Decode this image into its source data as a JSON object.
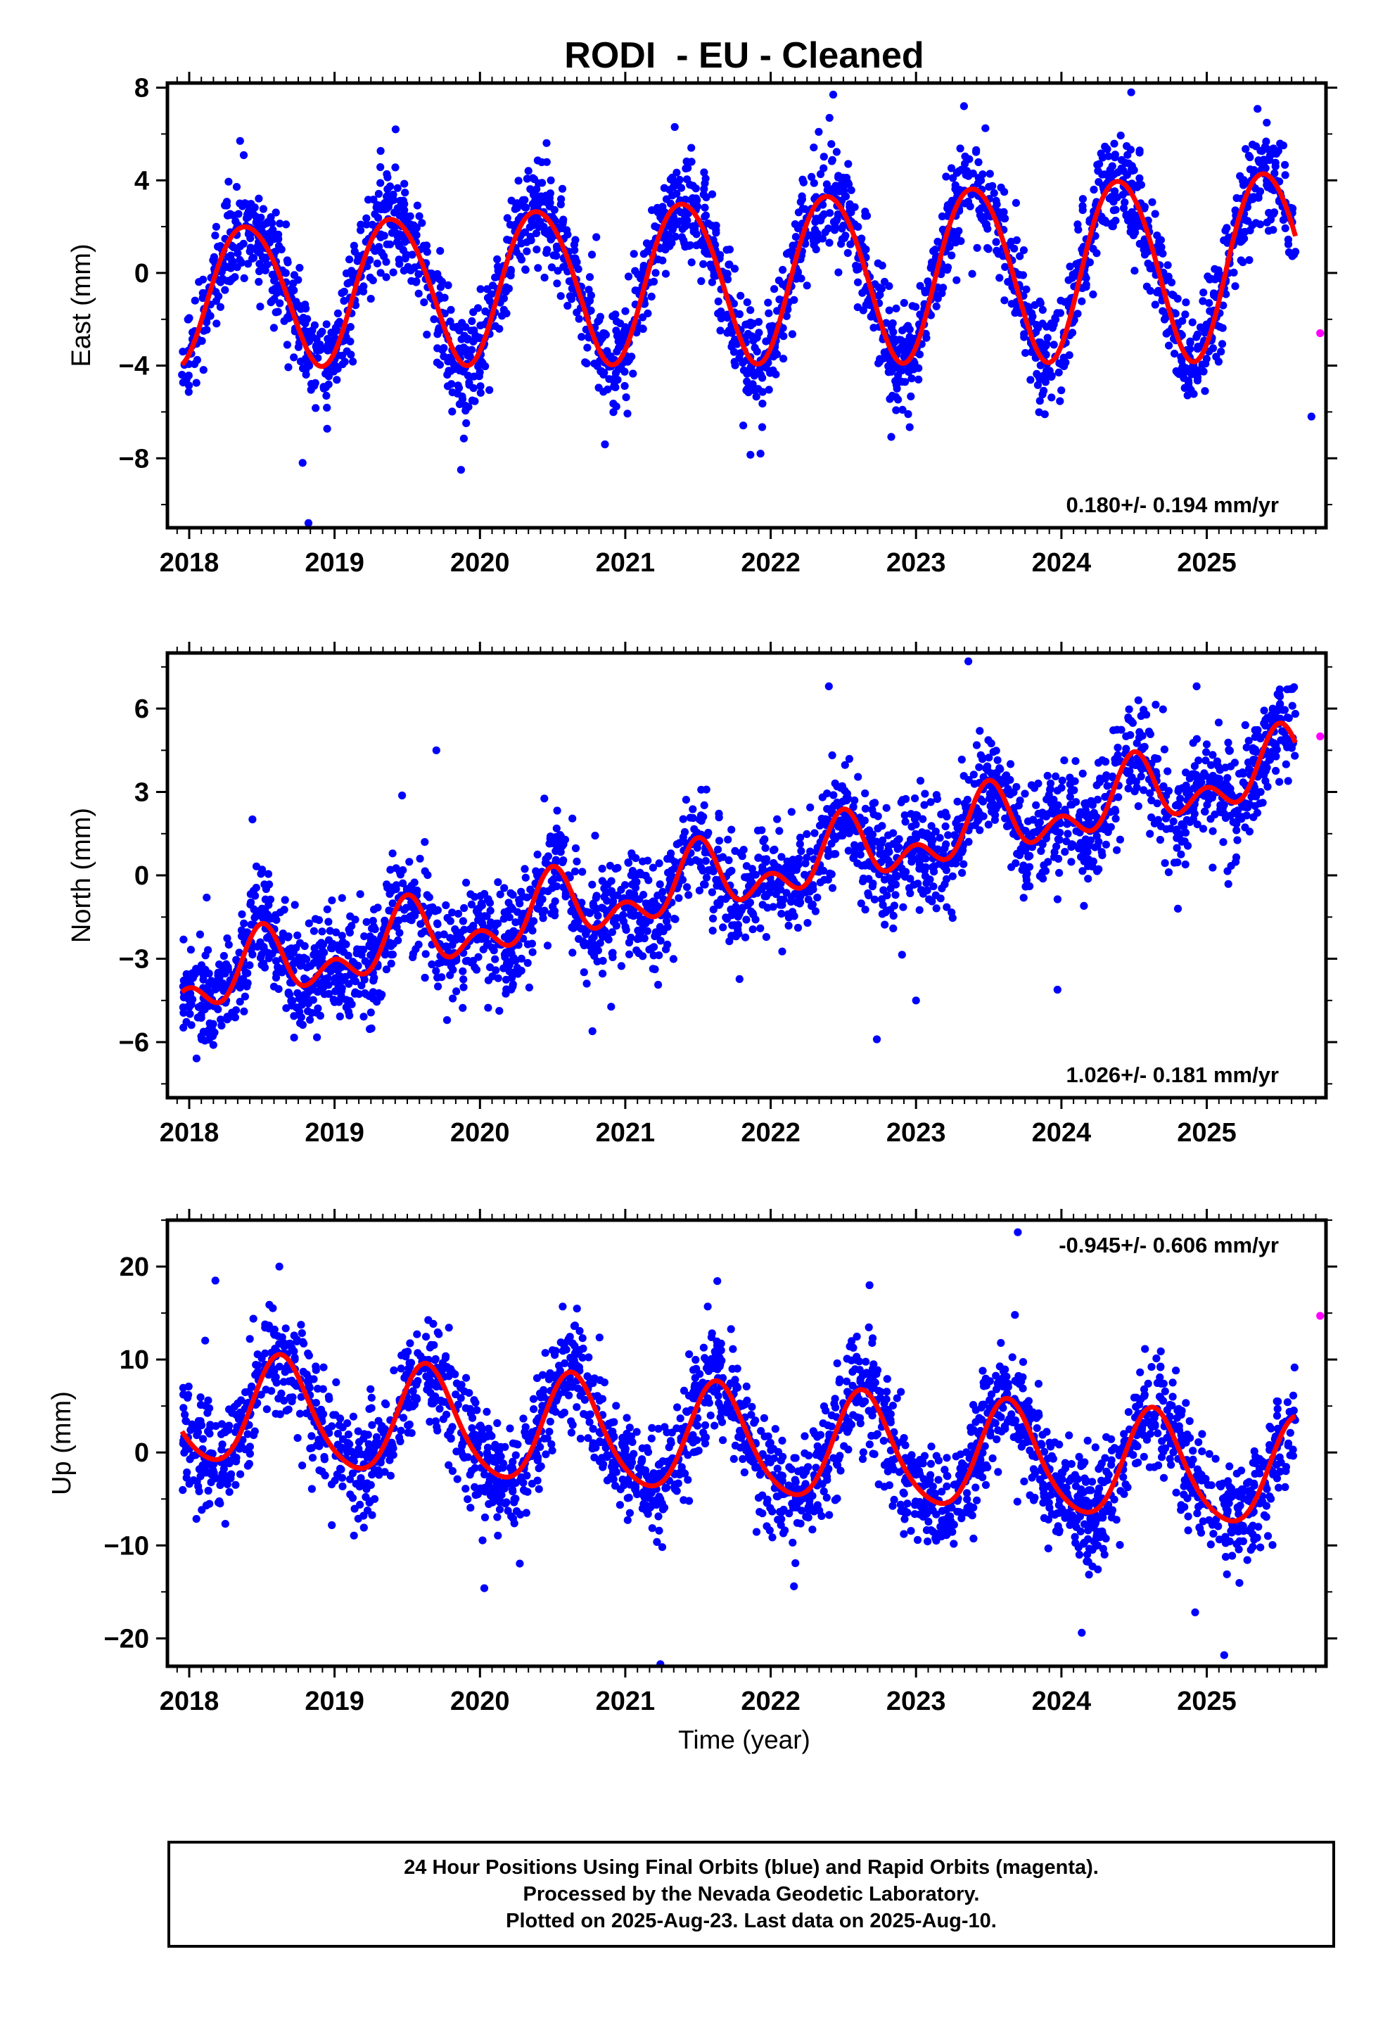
{
  "title": "RODI  - EU - Cleaned",
  "xlabel": "Time (year)",
  "footer": {
    "line1": "24 Hour Positions Using Final Orbits (blue) and Rapid Orbits (magenta).",
    "line2": "Processed by the Nevada Geodetic Laboratory.",
    "line3": "Plotted on 2025-Aug-23. Last data on 2025-Aug-10."
  },
  "colors": {
    "final": "#0000ff",
    "rapid": "#ff00ff",
    "model": "#ff0000",
    "frame": "#000000"
  },
  "chart_data": [
    {
      "type": "scatter",
      "component": "east",
      "ylabel": "East (mm)",
      "rate_label": "0.180+/- 0.194 mm/yr",
      "xlim": [
        2017.85,
        2025.82
      ],
      "ylim": [
        -11.0,
        8.2
      ],
      "xticks": [
        2018,
        2019,
        2020,
        2021,
        2022,
        2023,
        2024,
        2025
      ],
      "yticks": [
        -8,
        -4,
        0,
        4,
        8
      ],
      "ytick_labels": [
        "−8",
        "−4",
        "0",
        "4",
        "8"
      ],
      "model": {
        "offset": -0.9,
        "trend": 0.18,
        "t0": 2018.0,
        "annual_amp": 2.95,
        "annual_peak": 2018.4,
        "semi_amp": 0.25,
        "semi_peak": 2018.2,
        "amp_growth": 0.05
      },
      "scatter": 1.1,
      "final_range": [
        2017.95,
        2025.61
      ],
      "rapid_points": [
        [
          2025.78,
          -2.6
        ]
      ],
      "outliers": [
        [
          2018.82,
          -10.8
        ],
        [
          2019.87,
          -8.5
        ],
        [
          2018.78,
          -8.2
        ],
        [
          2021.93,
          -7.8
        ],
        [
          2020.86,
          -7.4
        ],
        [
          2025.72,
          -6.2
        ],
        [
          2019.42,
          6.2
        ],
        [
          2021.34,
          6.3
        ],
        [
          2022.43,
          7.7
        ],
        [
          2023.33,
          7.2
        ],
        [
          2024.48,
          7.8
        ],
        [
          2018.35,
          5.7
        ]
      ]
    },
    {
      "type": "scatter",
      "component": "north",
      "ylabel": "North (mm)",
      "rate_label": "1.026+/- 0.181 mm/yr",
      "xlim": [
        2017.85,
        2025.82
      ],
      "ylim": [
        -8.0,
        8.0
      ],
      "xticks": [
        2018,
        2019,
        2020,
        2021,
        2022,
        2023,
        2024,
        2025
      ],
      "yticks": [
        -6,
        -3,
        0,
        3,
        6
      ],
      "ytick_labels": [
        "−6",
        "−3",
        "0",
        "3",
        "6"
      ],
      "model": {
        "offset": -3.9,
        "trend": 1.03,
        "t0": 2018.0,
        "annual_amp": 0.9,
        "annual_peak": 2018.5,
        "semi_amp": 0.75,
        "semi_peak": 2018.5,
        "amp_growth": 0.0
      },
      "scatter": 0.95,
      "final_range": [
        2017.95,
        2025.61
      ],
      "rapid_points": [
        [
          2025.78,
          5.0
        ]
      ],
      "outliers": [
        [
          2022.73,
          -5.9
        ],
        [
          2023.0,
          -4.5
        ],
        [
          2018.12,
          -0.8
        ],
        [
          2019.7,
          4.5
        ],
        [
          2022.4,
          6.8
        ],
        [
          2023.36,
          7.7
        ],
        [
          2024.93,
          6.8
        ],
        [
          2025.5,
          6.5
        ]
      ]
    },
    {
      "type": "scatter",
      "component": "up",
      "ylabel": "Up (mm)",
      "rate_label": "-0.945+/- 0.606 mm/yr",
      "xlim": [
        2017.85,
        2025.82
      ],
      "ylim": [
        -23.0,
        25.0
      ],
      "xticks": [
        2018,
        2019,
        2020,
        2021,
        2022,
        2023,
        2024,
        2025
      ],
      "yticks": [
        -20,
        -10,
        0,
        10,
        20
      ],
      "ytick_labels": [
        "−20",
        "−10",
        "0",
        "10",
        "20"
      ],
      "model": {
        "offset": 4.6,
        "trend": -0.945,
        "t0": 2018.0,
        "annual_amp": 5.8,
        "annual_peak": 2018.64,
        "semi_amp": 0.8,
        "semi_peak": 2018.6,
        "amp_growth": 0.0
      },
      "scatter": 2.9,
      "final_range": [
        2017.95,
        2025.61
      ],
      "rapid_points": [
        [
          2025.78,
          14.7
        ]
      ],
      "outliers": [
        [
          2023.7,
          23.7
        ],
        [
          2018.62,
          20.0
        ],
        [
          2018.18,
          18.5
        ],
        [
          2022.68,
          18.0
        ],
        [
          2025.12,
          -21.8
        ],
        [
          2024.14,
          -19.4
        ],
        [
          2024.92,
          -17.2
        ],
        [
          2020.03,
          -14.6
        ],
        [
          2022.16,
          -14.4
        ],
        [
          2023.68,
          14.8
        ]
      ]
    }
  ]
}
